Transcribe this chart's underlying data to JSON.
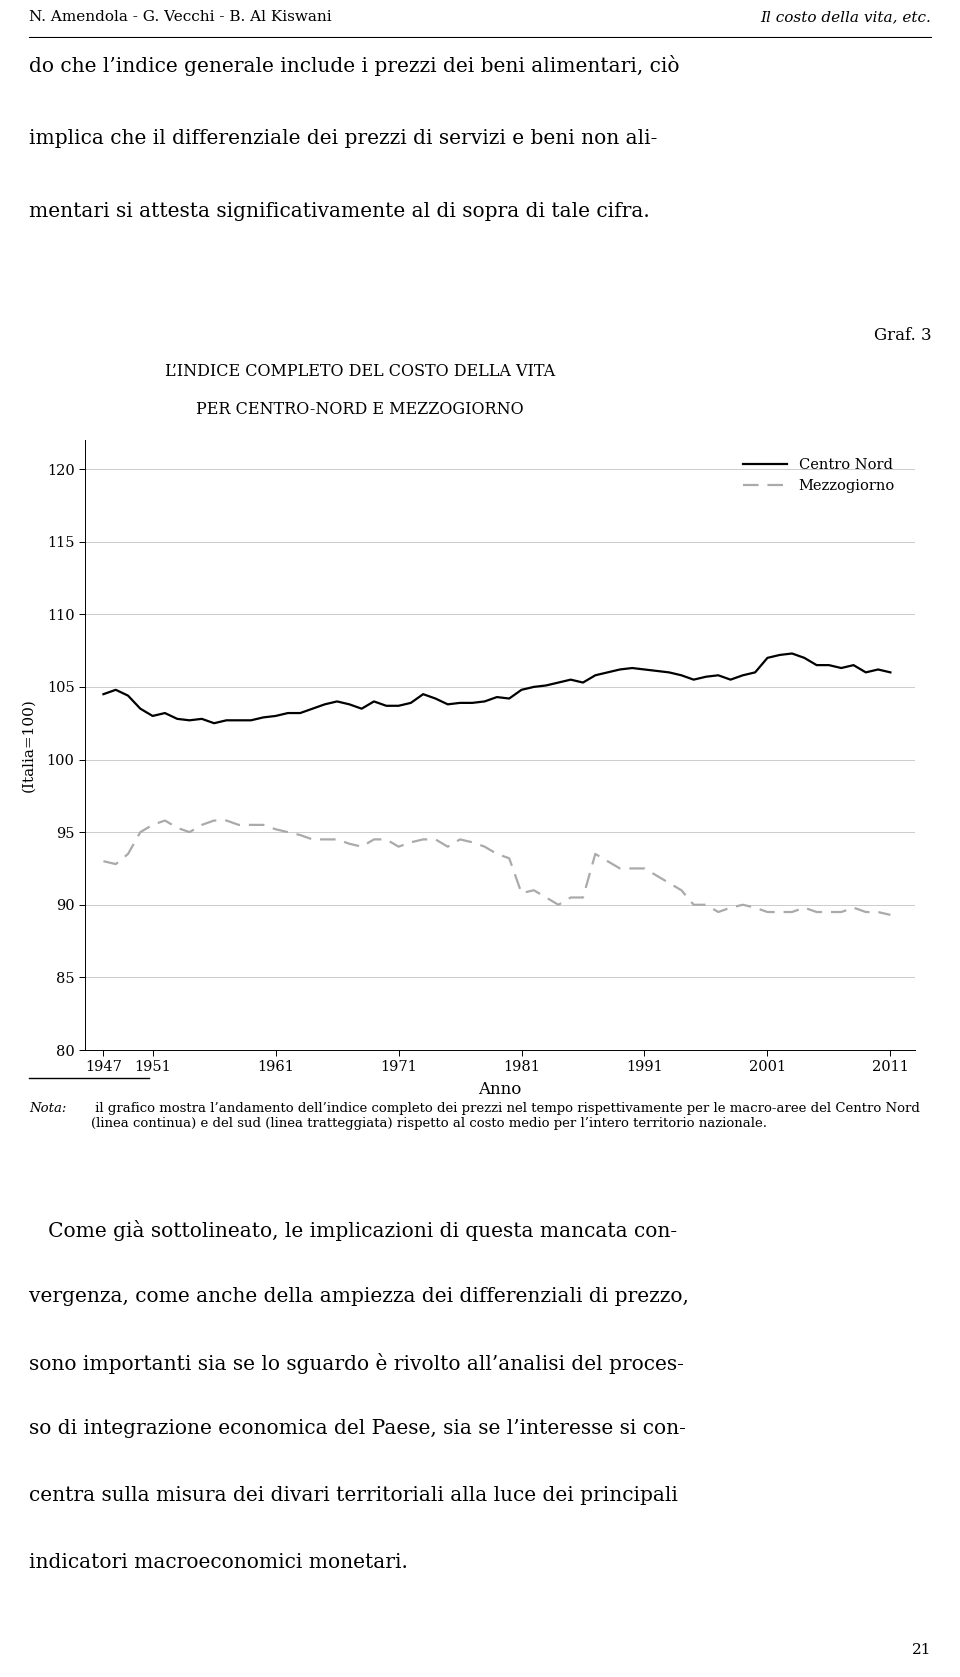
{
  "header_left": "N. Amendola - G. Vecchi - B. Al Kiswani",
  "header_right": "Il costo della vita, etc.",
  "body_text_1_line1": "do che l’indice generale include i prezzi dei beni alimentari, ciò",
  "body_text_1_line2": "implica che il differenziale dei prezzi di servizi e beni non ali-",
  "body_text_1_line3": "mentari si attesta significativamente al di sopra di tale cifra.",
  "graf_label": "Graf. 3",
  "chart_title_line1": "L’INDICE COMPLETO DEL COSTO DELLA VITA",
  "chart_title_line2": "PER CENTRO-NORD E MEZZOGIORNO",
  "ylabel": "(Italia=100)",
  "xlabel": "Anno",
  "ylim": [
    80,
    122
  ],
  "yticks": [
    80,
    85,
    90,
    95,
    100,
    105,
    110,
    115,
    120
  ],
  "xticks": [
    1947,
    1951,
    1961,
    1971,
    1981,
    1991,
    2001,
    2011
  ],
  "xtick_labels": [
    "1947",
    "1951",
    "1961",
    "1971",
    "1981",
    "1991",
    "2001",
    "2011"
  ],
  "legend_centro_nord": "Centro Nord",
  "legend_mezzogiorno": "Mezzogiorno",
  "centro_nord_color": "#000000",
  "mezzogiorno_color": "#aaaaaa",
  "centro_nord_x": [
    1947,
    1948,
    1949,
    1950,
    1951,
    1952,
    1953,
    1954,
    1955,
    1956,
    1957,
    1958,
    1959,
    1960,
    1961,
    1962,
    1963,
    1964,
    1965,
    1966,
    1967,
    1968,
    1969,
    1970,
    1971,
    1972,
    1973,
    1974,
    1975,
    1976,
    1977,
    1978,
    1979,
    1980,
    1981,
    1982,
    1983,
    1984,
    1985,
    1986,
    1987,
    1988,
    1989,
    1990,
    1991,
    1992,
    1993,
    1994,
    1995,
    1996,
    1997,
    1998,
    1999,
    2000,
    2001,
    2002,
    2003,
    2004,
    2005,
    2006,
    2007,
    2008,
    2009,
    2010,
    2011
  ],
  "centro_nord_y": [
    104.5,
    104.8,
    104.4,
    103.5,
    103.0,
    103.2,
    102.8,
    102.7,
    102.8,
    102.5,
    102.7,
    102.7,
    102.7,
    102.9,
    103.0,
    103.2,
    103.2,
    103.5,
    103.8,
    104.0,
    103.8,
    103.5,
    104.0,
    103.7,
    103.7,
    103.9,
    104.5,
    104.2,
    103.8,
    103.9,
    103.9,
    104.0,
    104.3,
    104.2,
    104.8,
    105.0,
    105.1,
    105.3,
    105.5,
    105.3,
    105.8,
    106.0,
    106.2,
    106.3,
    106.2,
    106.1,
    106.0,
    105.8,
    105.5,
    105.7,
    105.8,
    105.5,
    105.8,
    106.0,
    107.0,
    107.2,
    107.3,
    107.0,
    106.5,
    106.5,
    106.3,
    106.5,
    106.0,
    106.2,
    106.0
  ],
  "mezzogiorno_x": [
    1947,
    1948,
    1949,
    1950,
    1951,
    1952,
    1953,
    1954,
    1955,
    1956,
    1957,
    1958,
    1959,
    1960,
    1961,
    1962,
    1963,
    1964,
    1965,
    1966,
    1967,
    1968,
    1969,
    1970,
    1971,
    1972,
    1973,
    1974,
    1975,
    1976,
    1977,
    1978,
    1979,
    1980,
    1981,
    1982,
    1983,
    1984,
    1985,
    1986,
    1987,
    1988,
    1989,
    1990,
    1991,
    1992,
    1993,
    1994,
    1995,
    1996,
    1997,
    1998,
    1999,
    2000,
    2001,
    2002,
    2003,
    2004,
    2005,
    2006,
    2007,
    2008,
    2009,
    2010,
    2011
  ],
  "mezzogiorno_y": [
    93.0,
    92.8,
    93.5,
    95.0,
    95.5,
    95.8,
    95.3,
    95.0,
    95.5,
    95.8,
    95.8,
    95.5,
    95.5,
    95.5,
    95.2,
    95.0,
    94.8,
    94.5,
    94.5,
    94.5,
    94.2,
    94.0,
    94.5,
    94.5,
    94.0,
    94.3,
    94.5,
    94.5,
    94.0,
    94.5,
    94.3,
    94.0,
    93.5,
    93.2,
    90.8,
    91.0,
    90.5,
    90.0,
    90.5,
    90.5,
    93.5,
    93.0,
    92.5,
    92.5,
    92.5,
    92.0,
    91.5,
    91.0,
    90.0,
    90.0,
    89.5,
    89.8,
    90.0,
    89.8,
    89.5,
    89.5,
    89.5,
    89.8,
    89.5,
    89.5,
    89.5,
    89.8,
    89.5,
    89.5,
    89.3
  ],
  "nota_label": "Nota:",
  "nota_text": " il grafico mostra l’andamento dell’indice completo dei prezzi nel tempo rispettivamente per le macro-aree del Centro Nord (linea continua) e del sud (linea tratteggiata) rispetto al costo medio per l’intero territorio nazionale.",
  "body_text_2_line1": "   Come già sottolineato, le implicazioni di questa mancata con-",
  "body_text_2_line2": "vergenza, come anche della ampiezza dei differenziali di prezzo,",
  "body_text_2_line3": "sono importanti sia se lo sguardo è rivolto all’analisi del proces-",
  "body_text_2_line4": "so di integrazione economica del Paese, sia se l’interesse si con-",
  "body_text_2_line5": "centra sulla misura dei divari territoriali alla luce dei principali",
  "body_text_2_line6": "indicatori macroeconomici monetari.",
  "page_number": "21",
  "background_color": "#ffffff",
  "text_color": "#000000",
  "grid_color": "#cccccc"
}
